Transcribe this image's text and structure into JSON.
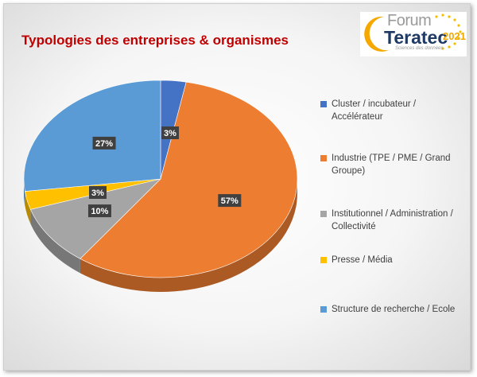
{
  "chart_data": {
    "type": "pie",
    "title": "Typologies des entreprises & organismes",
    "categories": [
      "Cluster / incubateur / Accélérateur",
      "Industrie (TPE / PME / Grand Groupe)",
      "Institutionnel / Administration / Collectivité",
      "Presse / Média",
      "Structure de recherche / Ecole"
    ],
    "values": [
      3,
      57,
      10,
      3,
      27
    ],
    "labels": [
      "3%",
      "57%",
      "10%",
      "3%",
      "27%"
    ],
    "colors": [
      "#4472c4",
      "#ed7d31",
      "#a5a5a5",
      "#ffc000",
      "#5b9bd5"
    ],
    "legend_position": "right",
    "style": "3D pie"
  },
  "logo": {
    "line1": "Forum",
    "line2": "Teratec",
    "year": "2021",
    "tagline": "Sciences des données"
  }
}
